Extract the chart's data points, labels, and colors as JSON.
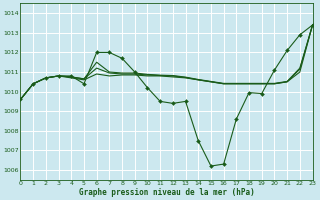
{
  "bg_color": "#cce8ef",
  "grid_color": "#b0d8e0",
  "line_color": "#1a5c1a",
  "ylim": [
    1005.5,
    1014.5
  ],
  "xlim": [
    0,
    23
  ],
  "yticks": [
    1006,
    1007,
    1008,
    1009,
    1010,
    1011,
    1012,
    1013,
    1014
  ],
  "xticks": [
    0,
    1,
    2,
    3,
    4,
    5,
    6,
    7,
    8,
    9,
    10,
    11,
    12,
    13,
    14,
    15,
    16,
    17,
    18,
    19,
    20,
    21,
    22,
    23
  ],
  "xlabel": "Graphe pression niveau de la mer (hPa)",
  "series_main": [
    1009.6,
    1010.4,
    1010.7,
    1010.8,
    1010.8,
    1010.4,
    1012.0,
    1012.0,
    1011.7,
    1011.0,
    1010.2,
    1009.5,
    1009.4,
    1009.5,
    1007.5,
    1006.2,
    1006.3,
    1008.6,
    1009.95,
    1009.9,
    1011.1,
    1012.1,
    1012.9,
    1013.4
  ],
  "series_flat1": [
    1009.6,
    1010.4,
    1010.7,
    1010.8,
    1010.7,
    1010.6,
    1010.9,
    1010.8,
    1010.85,
    1010.85,
    1010.8,
    1010.8,
    1010.75,
    1010.7,
    1010.6,
    1010.5,
    1010.4,
    1010.4,
    1010.4,
    1010.4,
    1010.4,
    1010.5,
    1011.0,
    1013.4
  ],
  "series_flat2": [
    1009.6,
    1010.4,
    1010.7,
    1010.8,
    1010.75,
    1010.65,
    1011.2,
    1010.95,
    1010.9,
    1010.9,
    1010.85,
    1010.82,
    1010.8,
    1010.72,
    1010.6,
    1010.5,
    1010.4,
    1010.4,
    1010.4,
    1010.4,
    1010.4,
    1010.5,
    1011.15,
    1013.4
  ],
  "series_flat3": [
    1009.6,
    1010.4,
    1010.7,
    1010.8,
    1010.75,
    1010.65,
    1011.5,
    1011.0,
    1010.95,
    1010.95,
    1010.88,
    1010.84,
    1010.82,
    1010.74,
    1010.62,
    1010.52,
    1010.42,
    1010.42,
    1010.42,
    1010.42,
    1010.42,
    1010.52,
    1011.2,
    1013.4
  ]
}
